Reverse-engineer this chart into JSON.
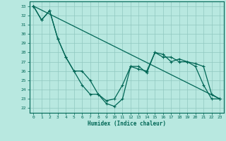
{
  "xlabel": "Humidex (Indice chaleur)",
  "bg_color": "#b8e8e0",
  "grid_color": "#90c8c0",
  "line_color": "#006655",
  "xlim": [
    -0.5,
    23.5
  ],
  "ylim": [
    21.5,
    33.5
  ],
  "xticks": [
    0,
    1,
    2,
    3,
    4,
    5,
    6,
    7,
    8,
    9,
    10,
    11,
    12,
    13,
    14,
    15,
    16,
    17,
    18,
    19,
    20,
    21,
    22,
    23
  ],
  "yticks": [
    22,
    23,
    24,
    25,
    26,
    27,
    28,
    29,
    30,
    31,
    32,
    33
  ],
  "series1_x": [
    0,
    1,
    2,
    3,
    4,
    5,
    6,
    7,
    8,
    9,
    10,
    11,
    12,
    13,
    14,
    15,
    16,
    17,
    18,
    19,
    20,
    21,
    22,
    23
  ],
  "series1_y": [
    33,
    31.5,
    32.5,
    29.5,
    27.5,
    26.0,
    26.0,
    25.0,
    23.5,
    22.5,
    22.2,
    23.0,
    26.5,
    26.5,
    25.8,
    28.0,
    27.5,
    27.5,
    27.0,
    27.0,
    26.5,
    24.5,
    23.0,
    23.0
  ],
  "series2_x": [
    0,
    1,
    2,
    3,
    4,
    5,
    6,
    7,
    8,
    9,
    10,
    11,
    12,
    13,
    14,
    15,
    16,
    17,
    18,
    19,
    20,
    21,
    22,
    23
  ],
  "series2_y": [
    33,
    31.5,
    32.5,
    29.5,
    27.5,
    26.0,
    24.5,
    23.5,
    23.5,
    22.8,
    23.0,
    24.5,
    26.5,
    26.2,
    26.0,
    28.0,
    27.8,
    27.0,
    27.3,
    27.0,
    26.8,
    26.5,
    23.5,
    23.0
  ],
  "series3_x": [
    0,
    23
  ],
  "series3_y": [
    33,
    23.0
  ]
}
